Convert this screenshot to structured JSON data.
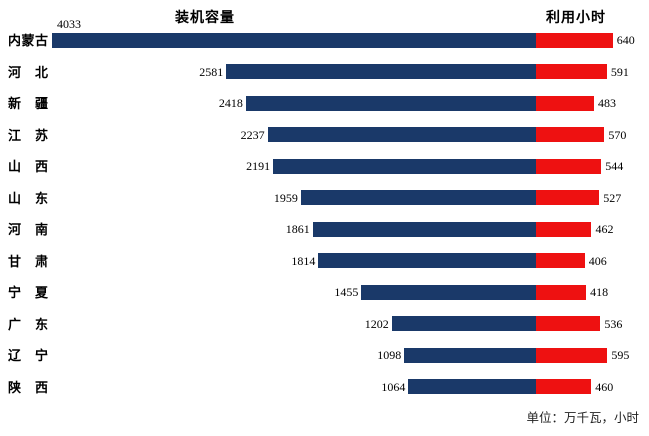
{
  "chart_data": {
    "type": "bar",
    "orientation": "horizontal",
    "layout": "paired-opposed",
    "grid": false,
    "categories": [
      "内蒙古",
      "河北",
      "新疆",
      "江苏",
      "山西",
      "山东",
      "河南",
      "甘肃",
      "宁夏",
      "广东",
      "辽宁",
      "陕西"
    ],
    "series": [
      {
        "name": "装机容量",
        "side": "left",
        "color": "#1A3969",
        "values": [
          4033,
          2581,
          2418,
          2237,
          2191,
          1959,
          1861,
          1814,
          1455,
          1202,
          1098,
          1064
        ]
      },
      {
        "name": "利用小时",
        "side": "right",
        "color": "#EE1111",
        "values": [
          640,
          591,
          483,
          570,
          544,
          527,
          462,
          406,
          418,
          536,
          595,
          460
        ]
      }
    ],
    "unit_note": "单位：万千瓦，小时"
  }
}
